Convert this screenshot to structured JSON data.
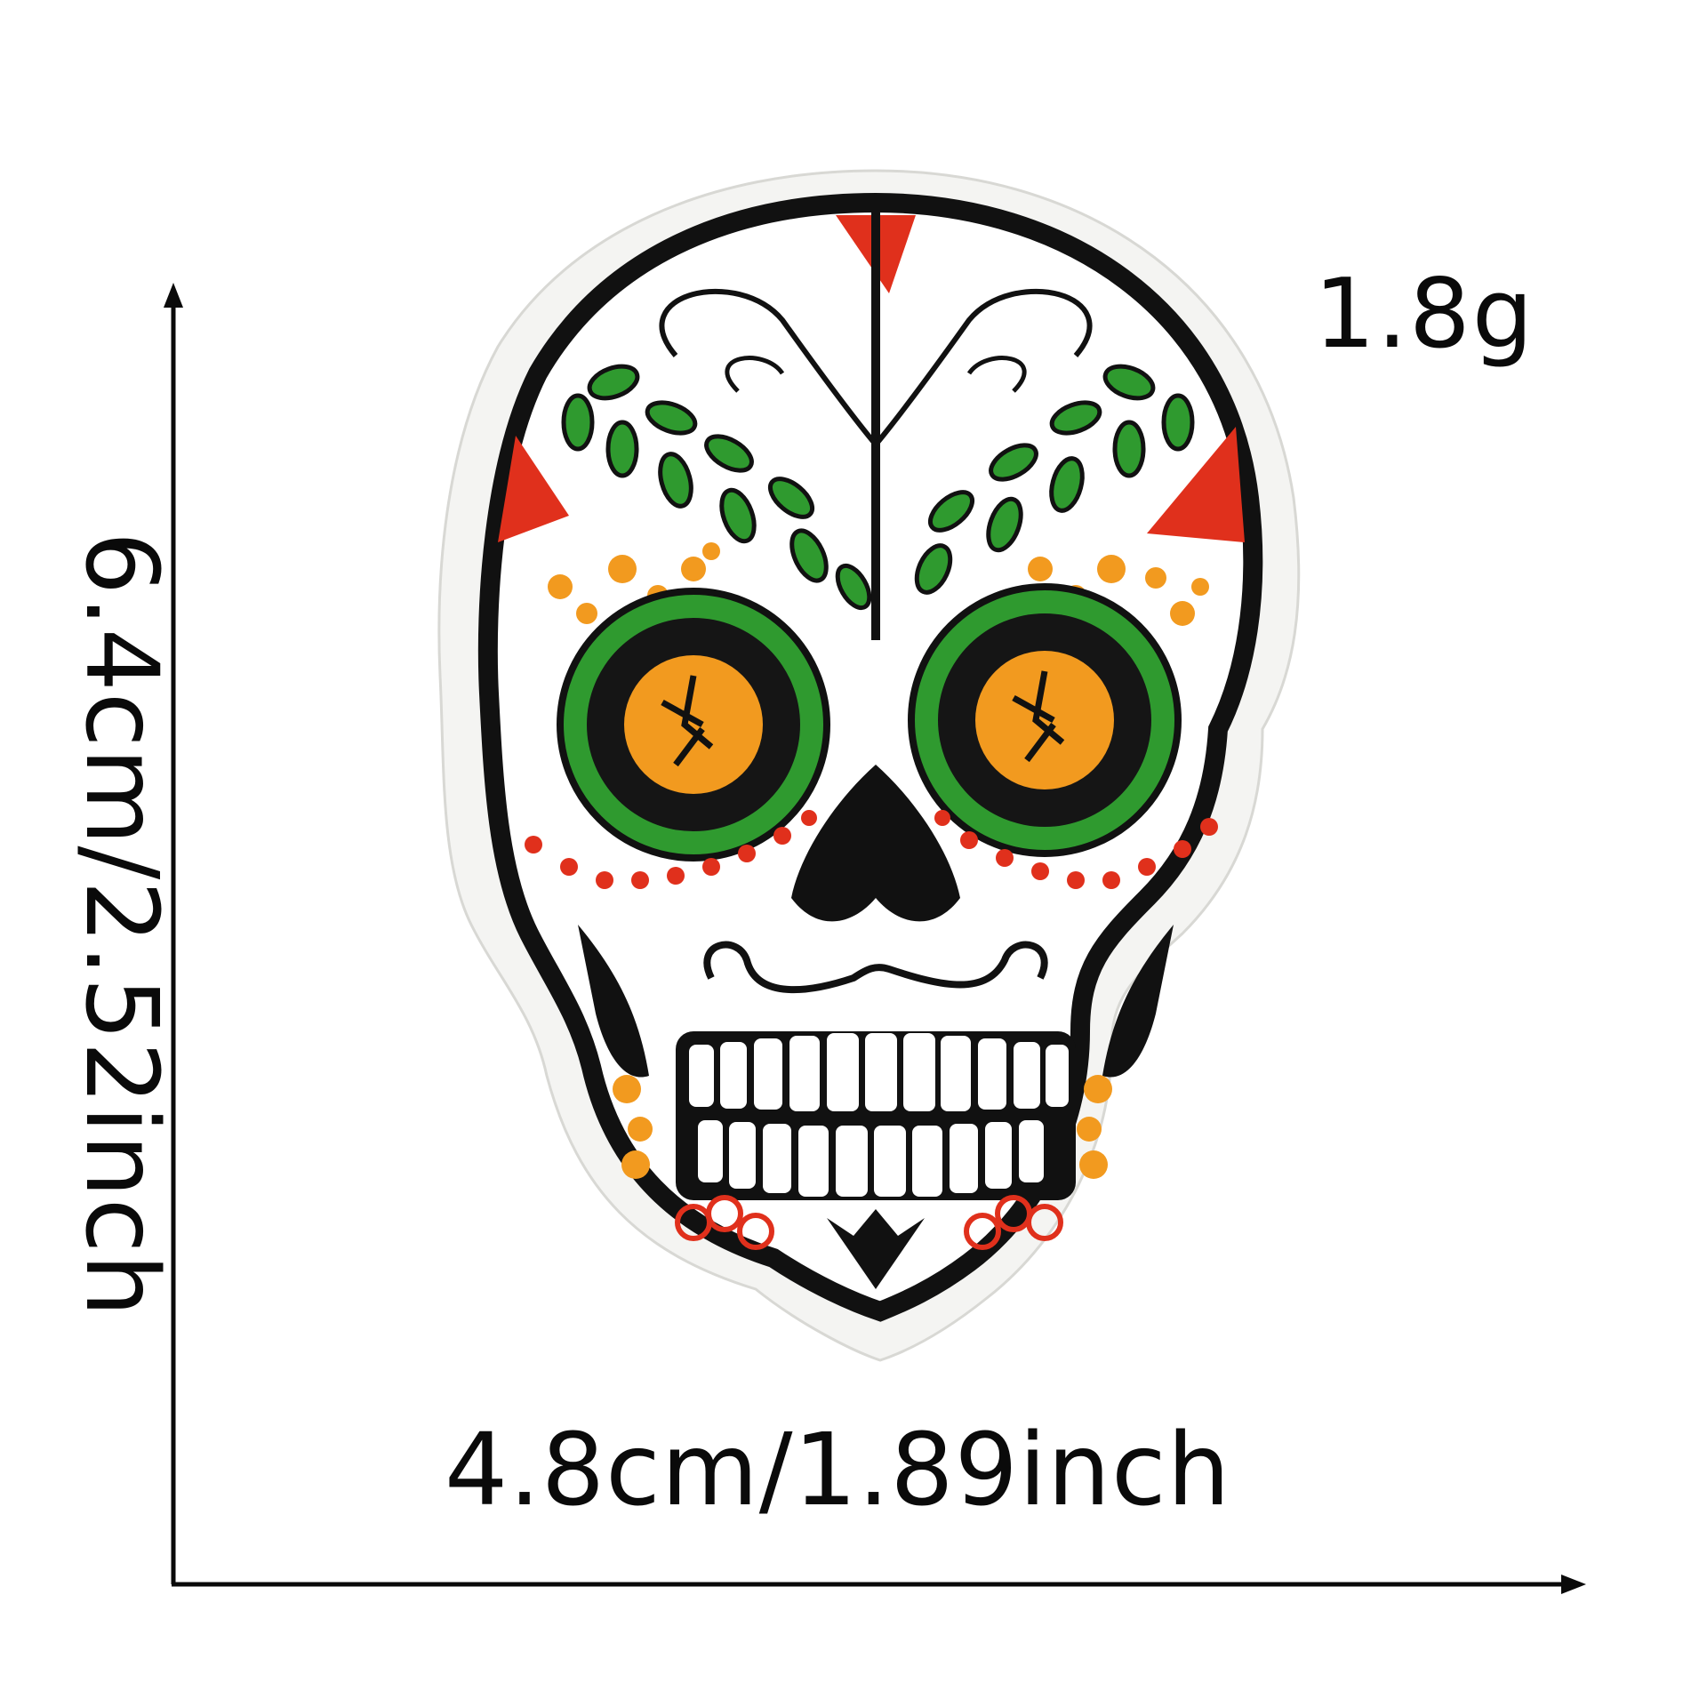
{
  "product": {
    "name": "",
    "weight": "1.8g",
    "width": "4.8cm/1.89inch",
    "height": "6.4cm/2.52inch"
  },
  "colors": {
    "outline": "#111111",
    "felt": "#f4f4f2",
    "red": "#e0301c",
    "green": "#2f9a2f",
    "orange": "#f29a1f"
  },
  "icons": {
    "patch": "sugar-skull-embroidered-patch",
    "arrows": "dimension-arrow"
  }
}
